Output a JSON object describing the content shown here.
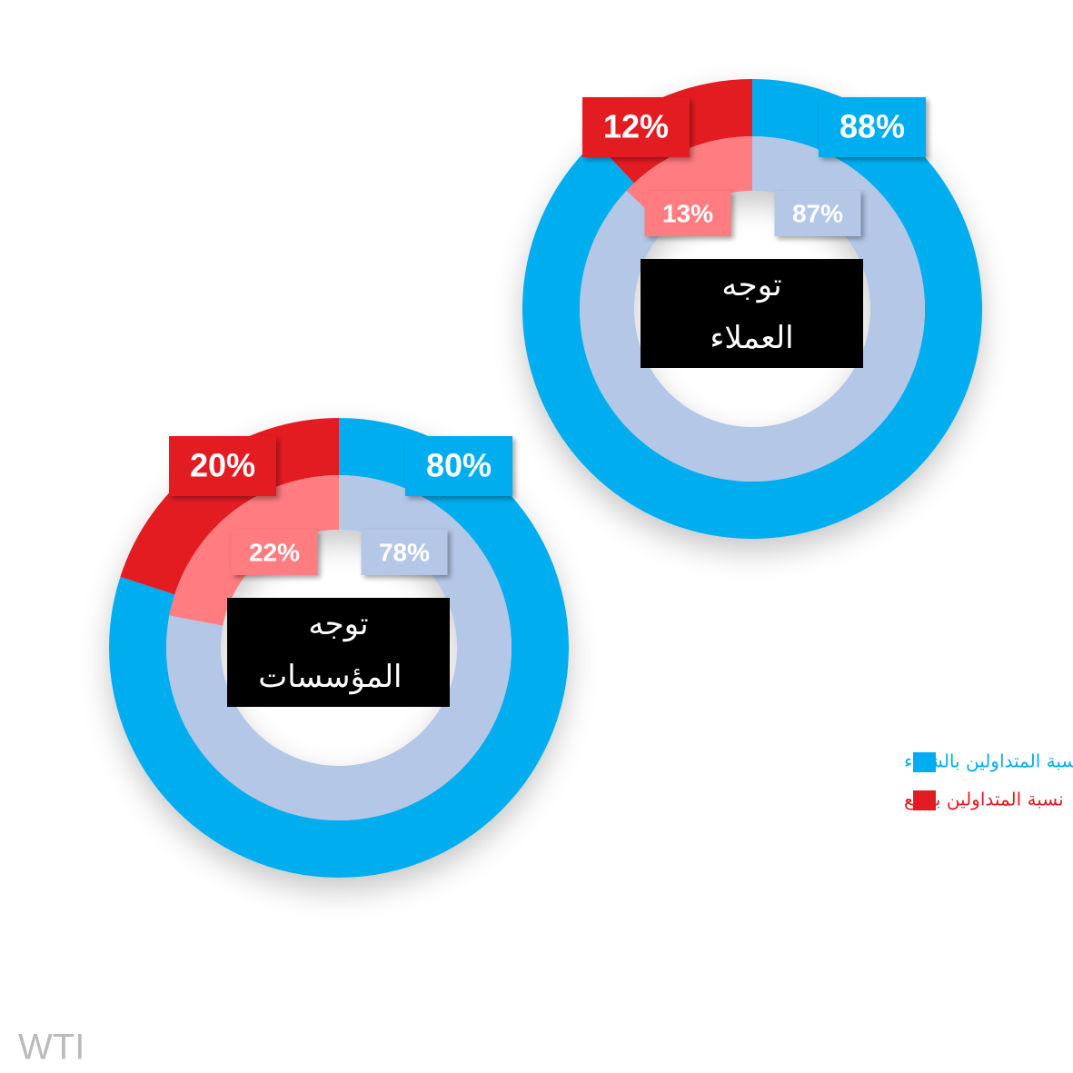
{
  "chart_data": [
    {
      "type": "donut",
      "title": "توجه العملاء",
      "outer": {
        "values": [
          88,
          12
        ],
        "value_labels": [
          "88%",
          "12%"
        ],
        "colors": [
          "#00aeef",
          "#e31b23"
        ]
      },
      "inner": {
        "values": [
          87,
          13
        ],
        "value_labels": [
          "87%",
          "13%"
        ],
        "colors": [
          "#b4c7e7",
          "#ff7c80"
        ]
      }
    },
    {
      "type": "donut",
      "title": "توجه المؤسسات",
      "outer": {
        "values": [
          80,
          20
        ],
        "value_labels": [
          "80%",
          "20%"
        ],
        "colors": [
          "#00aeef",
          "#e31b23"
        ]
      },
      "inner": {
        "values": [
          78,
          22
        ],
        "value_labels": [
          "78%",
          "22%"
        ],
        "colors": [
          "#b4c7e7",
          "#ff7c80"
        ]
      }
    }
  ],
  "legend": [
    {
      "name": "نسبة المتداولين بالشراء",
      "color": "#00aeef"
    },
    {
      "name": "نسبة المتداولين بالبيع",
      "color": "#e31b23"
    }
  ],
  "watermark": "WTI"
}
